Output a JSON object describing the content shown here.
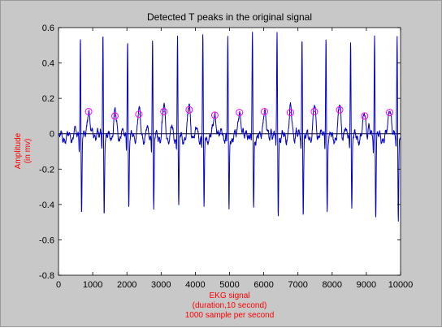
{
  "chart_data": {
    "type": "line",
    "title": "Detected T peaks in the original signal",
    "xlabel_lines": [
      "EKG signal",
      "(duration,10 second)",
      "1000 sample per second"
    ],
    "ylabel_lines": [
      "Amplitude",
      "(in mv)"
    ],
    "xlim": [
      0,
      10000
    ],
    "ylim": [
      -0.8,
      0.6
    ],
    "xticks": [
      0,
      1000,
      2000,
      3000,
      4000,
      5000,
      6000,
      7000,
      8000,
      9000,
      10000
    ],
    "yticks": [
      -0.8,
      -0.6,
      -0.4,
      -0.2,
      0,
      0.2,
      0.4,
      0.6
    ],
    "ytick_labels": [
      "-0.8",
      "-0.6",
      "-0.4",
      "-0.2",
      "0",
      "0.2",
      "0.4",
      "0.6"
    ],
    "grid": false,
    "colors": {
      "signal": "#0000cc",
      "markers": "#ff00ff",
      "title": "#000000",
      "axis_labels": "#ff0000",
      "figure_bg": "#c8c8c8",
      "axes_bg": "#ffffff",
      "baseline": "#000000"
    },
    "signal": {
      "r_peaks_x": [
        640,
        1300,
        2020,
        2750,
        3480,
        4220,
        4950,
        5670,
        6390,
        7120,
        7820,
        8540,
        9240,
        9900
      ],
      "r_peaks_y": [
        0.54,
        0.55,
        0.54,
        0.54,
        0.54,
        0.53,
        0.52,
        0.55,
        0.55,
        0.52,
        0.54,
        0.55,
        0.55,
        0.53
      ],
      "s_troughs_y": [
        -0.41,
        -0.4,
        -0.39,
        -0.41,
        -0.41,
        -0.42,
        -0.42,
        -0.4,
        -0.42,
        -0.4,
        -0.41,
        -0.4,
        -0.43,
        -0.43
      ]
    },
    "t_peaks": {
      "x": [
        880,
        1650,
        2350,
        3080,
        3820,
        4570,
        5290,
        6020,
        6780,
        7480,
        8220,
        8950,
        9680
      ],
      "y": [
        0.125,
        0.1,
        0.11,
        0.125,
        0.135,
        0.105,
        0.12,
        0.125,
        0.12,
        0.125,
        0.135,
        0.1,
        0.12
      ]
    }
  }
}
